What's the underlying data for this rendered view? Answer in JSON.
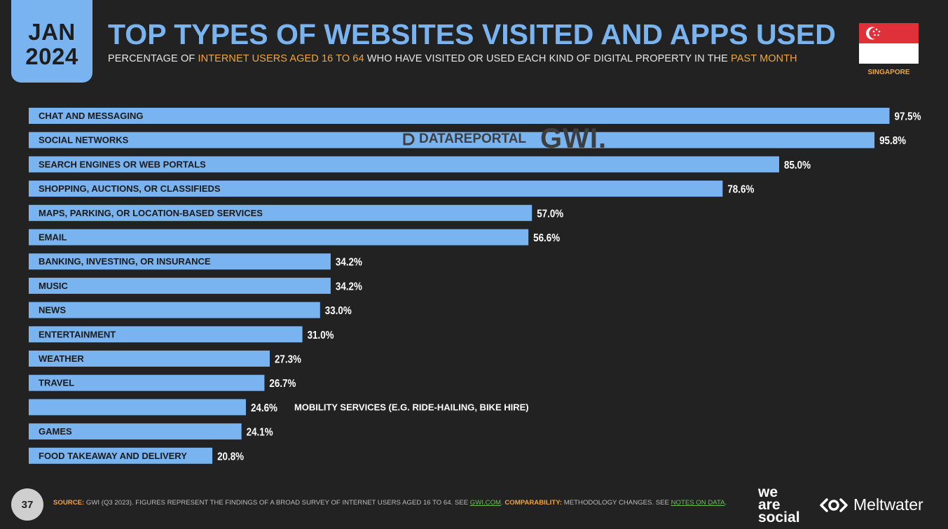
{
  "header": {
    "month": "JAN",
    "year": "2024",
    "title": "TOP TYPES OF WEBSITES VISITED AND APPS USED",
    "subtitle_parts": [
      {
        "text": "PERCENTAGE OF ",
        "hl": false
      },
      {
        "text": "INTERNET USERS AGED 16 TO 64",
        "hl": true
      },
      {
        "text": " WHO HAVE VISITED OR USED EACH KIND OF DIGITAL PROPERTY IN THE ",
        "hl": false
      },
      {
        "text": "PAST MONTH",
        "hl": true
      }
    ],
    "country": "SINGAPORE",
    "flag_icon": "singapore-flag-icon"
  },
  "watermark": {
    "datareportal": "DATAREPORTAL",
    "gwi": "GWI."
  },
  "colors": {
    "background": "#222222",
    "bar": "#7ab4f0",
    "accent": "#f0a640",
    "link": "#6fbf5a"
  },
  "chart_data": {
    "type": "bar",
    "orientation": "horizontal",
    "value_suffix": "%",
    "xlim": [
      0,
      100
    ],
    "grid": false,
    "categories": [
      "CHAT AND MESSAGING",
      "SOCIAL NETWORKS",
      "SEARCH ENGINES OR WEB PORTALS",
      "SHOPPING, AUCTIONS, OR CLASSIFIEDS",
      "MAPS, PARKING, OR LOCATION-BASED SERVICES",
      "EMAIL",
      "BANKING, INVESTING, OR INSURANCE",
      "MUSIC",
      "NEWS",
      "ENTERTAINMENT",
      "WEATHER",
      "TRAVEL",
      "MOBILITY SERVICES (E.G. RIDE-HAILING, BIKE HIRE)",
      "GAMES",
      "FOOD TAKEAWAY AND DELIVERY"
    ],
    "values": [
      97.5,
      95.8,
      85.0,
      78.6,
      57.0,
      56.6,
      34.2,
      34.2,
      33.0,
      31.0,
      27.3,
      26.7,
      24.6,
      24.1,
      20.8
    ],
    "value_labels": [
      "97.5%",
      "95.8%",
      "85.0%",
      "78.6%",
      "57.0%",
      "56.6%",
      "34.2%",
      "34.2%",
      "33.0%",
      "31.0%",
      "27.3%",
      "26.7%",
      "24.6%",
      "24.1%",
      "20.8%"
    ],
    "label_outside": [
      false,
      false,
      false,
      false,
      false,
      false,
      false,
      false,
      false,
      false,
      false,
      false,
      true,
      false,
      false
    ]
  },
  "footer": {
    "page_number": "37",
    "source_label": "SOURCE:",
    "source_text": " GWI (Q3 2023). FIGURES REPRESENT THE FINDINGS OF A BROAD SURVEY OF INTERNET USERS AGED 16 TO 64. SEE ",
    "source_link": "GWI.COM",
    "source_end": ". ",
    "comparability_label": "COMPARABILITY:",
    "comparability_text": " METHODOLOGY CHANGES. SEE ",
    "comparability_link": "NOTES ON DATA",
    "comparability_end": ".",
    "brand1_lines": [
      "we",
      "are",
      "social"
    ],
    "brand2": "Meltwater"
  }
}
